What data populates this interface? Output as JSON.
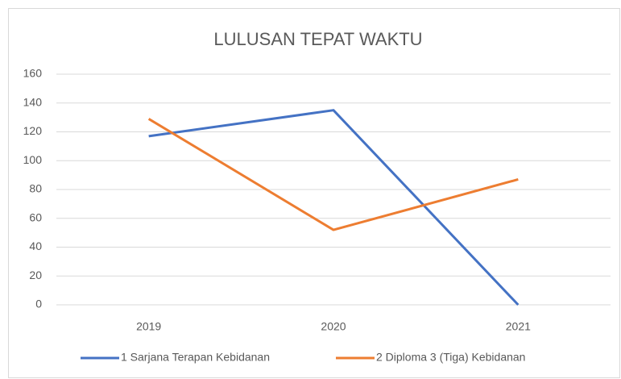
{
  "chart_data": {
    "type": "line",
    "title": "LULUSAN TEPAT WAKTU",
    "categories": [
      "2019",
      "2020",
      "2021"
    ],
    "series": [
      {
        "name": "1 Sarjana Terapan Kebidanan",
        "color": "#4472c4",
        "values": [
          117,
          135,
          0
        ]
      },
      {
        "name": "2 Diploma 3 (Tiga) Kebidanan",
        "color": "#ed7d31",
        "values": [
          129,
          52,
          87
        ]
      }
    ],
    "ylim": [
      0,
      160
    ],
    "yticks": [
      0,
      20,
      40,
      60,
      80,
      100,
      120,
      140,
      160
    ],
    "grid": true,
    "legend": "bottom"
  }
}
